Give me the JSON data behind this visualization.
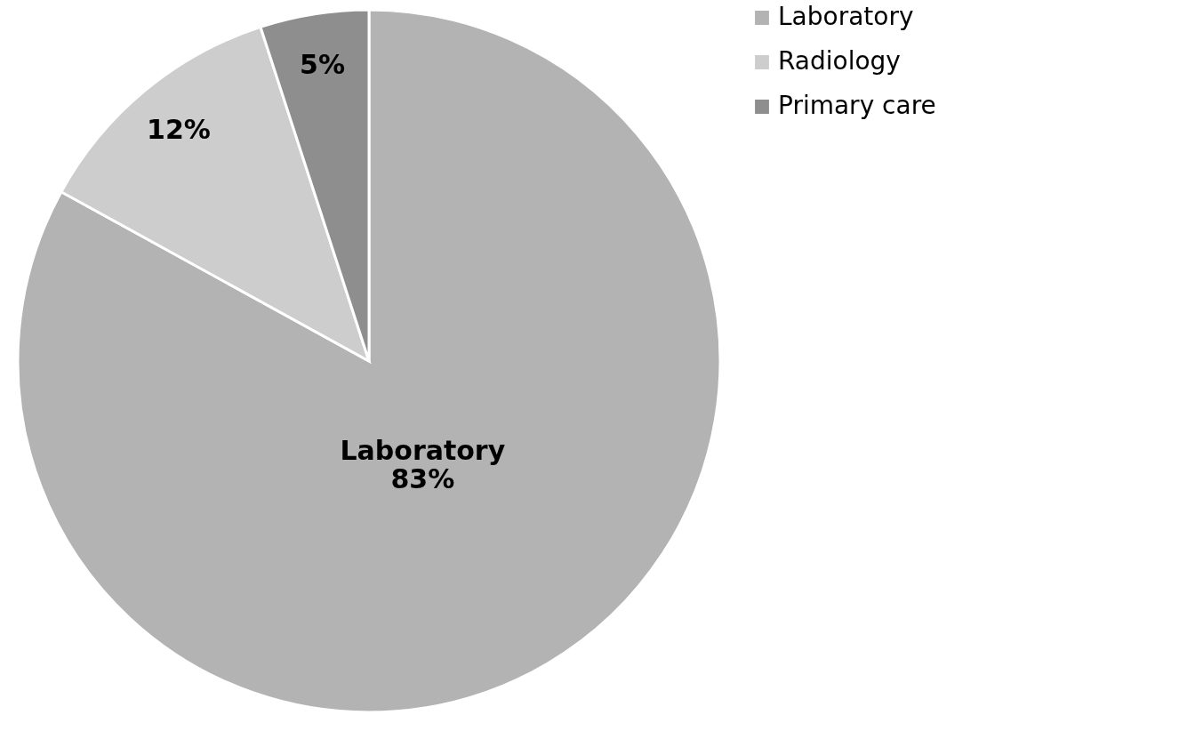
{
  "chart_data": {
    "type": "pie",
    "categories": [
      "Laboratory",
      "Radiology",
      "Primary care"
    ],
    "values": [
      83,
      12,
      5
    ],
    "colors": [
      "#b3b3b3",
      "#cdcdcd",
      "#8e8e8e"
    ],
    "value_labels": [
      "Laboratory\n83%",
      "12%",
      "5%"
    ],
    "legend": "right"
  }
}
